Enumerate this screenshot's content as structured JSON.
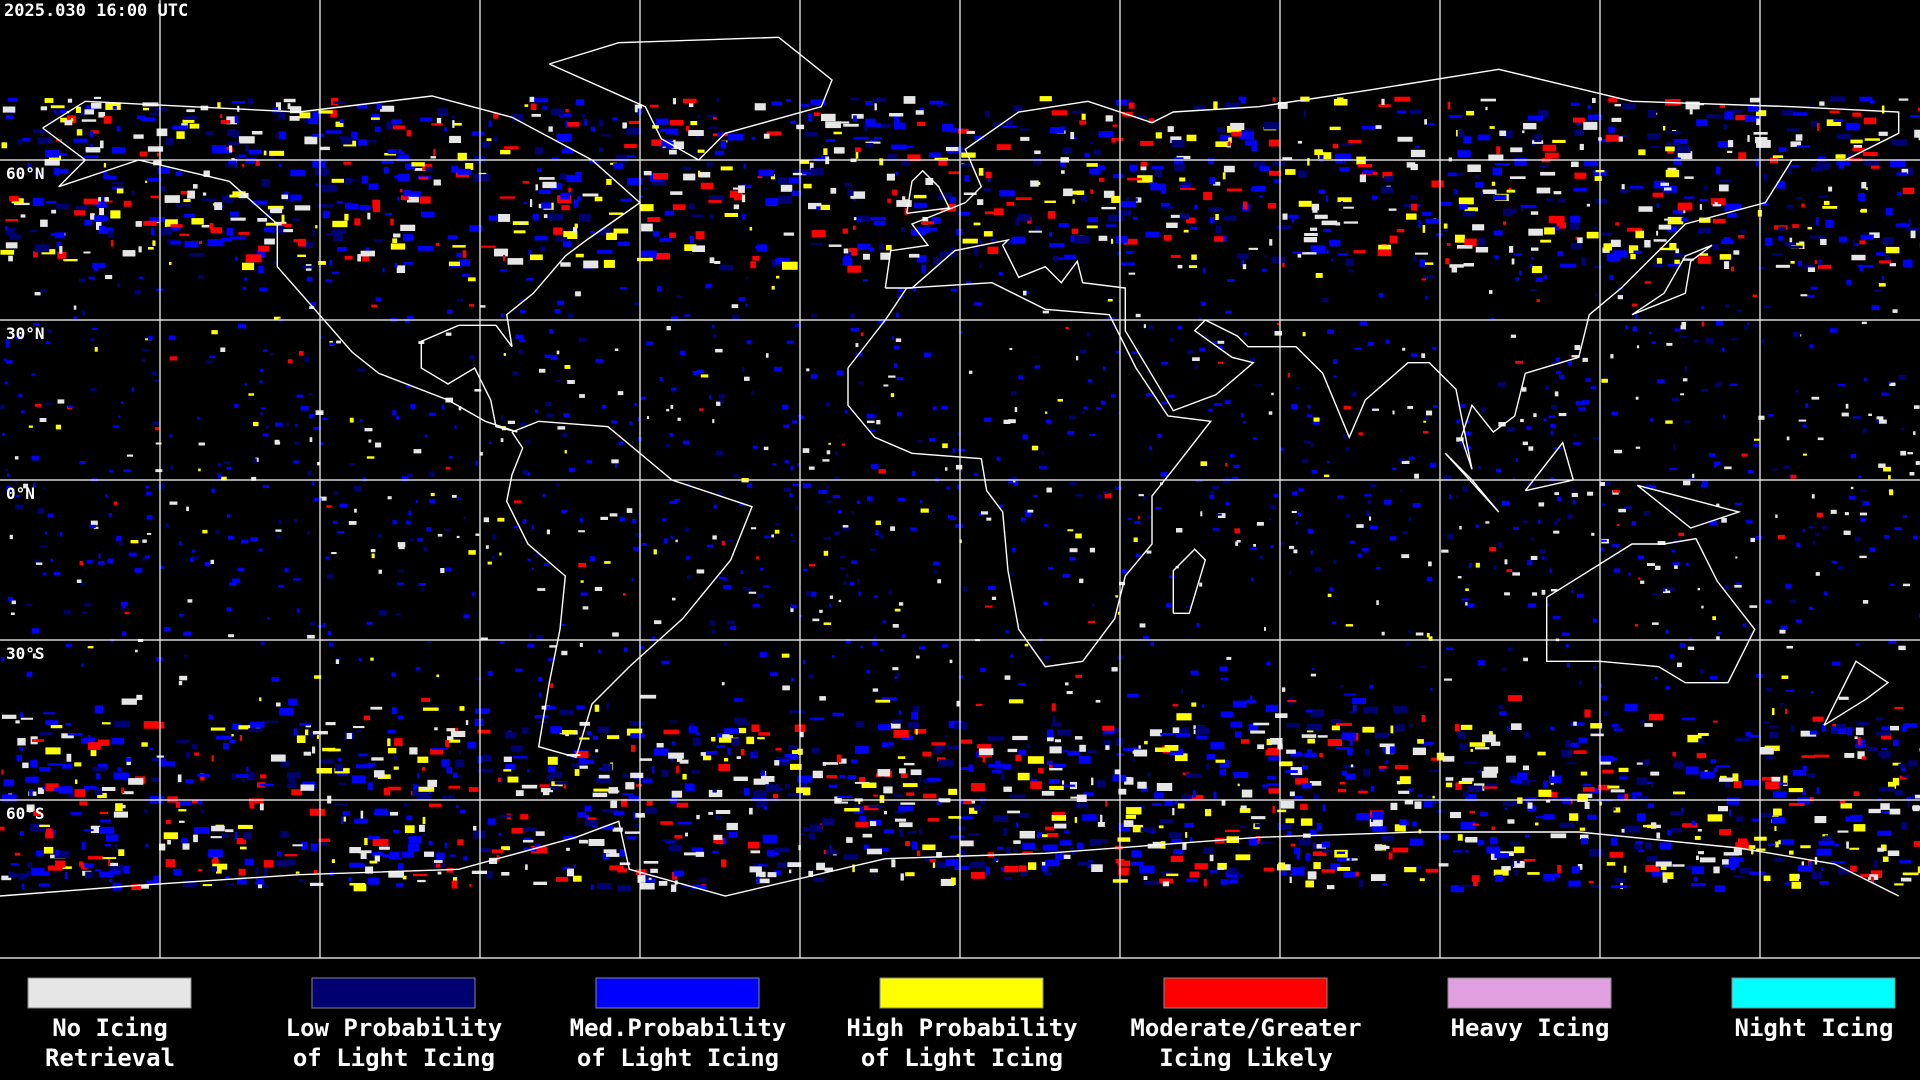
{
  "timestamp": "2025.030 16:00 UTC",
  "latitude_labels": [
    "60°N",
    "30°N",
    "0°N",
    "30°S",
    "60°S"
  ],
  "legend": [
    {
      "lines": [
        "No Icing",
        "Retrieval"
      ],
      "color": "#e6e6e6"
    },
    {
      "lines": [
        "Low Probability",
        "of Light Icing"
      ],
      "color": "#000070"
    },
    {
      "lines": [
        "Med.Probability",
        "of Light Icing"
      ],
      "color": "#0000ff"
    },
    {
      "lines": [
        "High Probability",
        "of Light Icing"
      ],
      "color": "#ffff00"
    },
    {
      "lines": [
        "Moderate/Greater",
        "Icing Likely"
      ],
      "color": "#ff0000"
    },
    {
      "lines": [
        "Heavy Icing"
      ],
      "color": "#e0a0e0"
    },
    {
      "lines": [
        "Night Icing"
      ],
      "color": "#00ffff"
    }
  ]
}
